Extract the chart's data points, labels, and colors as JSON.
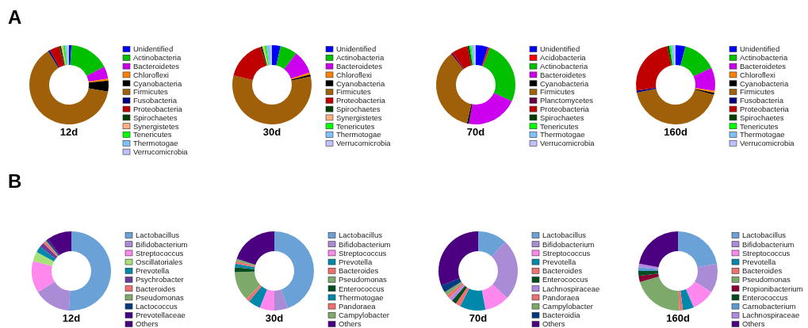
{
  "chart_data": [
    {
      "type": "donut",
      "title": "12d",
      "annotations": [
        "A"
      ],
      "legend": "right",
      "categories": [
        "Unidentified",
        "Actinobacteria",
        "Bacteroidetes",
        "Chloroflexi",
        "Cyanobacteria",
        "Firmicutes",
        "Fusobacteria",
        "Proteobacteria",
        "Spirochaetes",
        "Synergistetes",
        "Tenericutes",
        "Thermotogae",
        "Verrucomicrobia"
      ],
      "values": [
        1,
        16.5,
        5,
        0.8,
        4.5,
        63.4,
        0.8,
        4,
        0.8,
        0.8,
        0.8,
        0.8,
        0.8
      ],
      "colors": [
        "#0000ff",
        "#00c000",
        "#cc00ee",
        "#ff8000",
        "#000000",
        "#a0600a",
        "#000080",
        "#c00000",
        "#004000",
        "#ffb080",
        "#00ff00",
        "#80c0ff",
        "#c0c0ff"
      ]
    },
    {
      "type": "donut",
      "title": "30d",
      "legend": "right",
      "categories": [
        "Unidentified",
        "Actinobacteria",
        "Bacteroidetes",
        "Chloroflexi",
        "Cyanobacteria",
        "Firmicutes",
        "Proteobacteria",
        "Spirochaetes",
        "Synergistetes",
        "Tenericutes",
        "Thermotogae",
        "Verrucomicrobia"
      ],
      "values": [
        3.5,
        7,
        9.5,
        0.8,
        0.8,
        57.2,
        16.5,
        0.8,
        0.8,
        0.8,
        1.5,
        0.8
      ],
      "colors": [
        "#0000ff",
        "#00c000",
        "#cc00ee",
        "#ff8000",
        "#000000",
        "#a0600a",
        "#c00000",
        "#004000",
        "#ffb080",
        "#00ff00",
        "#80c0ff",
        "#c0c0ff"
      ]
    },
    {
      "type": "donut",
      "title": "70d",
      "legend": "right",
      "categories": [
        "Unidentified",
        "Acidobacteria",
        "Actinobacteria",
        "Bacteroidetes",
        "Cyanobacteria",
        "Firmicutes",
        "Planctomycetes",
        "Proteobacteria",
        "Spirochaetes",
        "Tenericutes",
        "Thermotogae",
        "Verrucomicrobia"
      ],
      "values": [
        5,
        0.8,
        26,
        21,
        0.8,
        35.7,
        0.8,
        6.5,
        0.8,
        0.8,
        1,
        0.8
      ],
      "colors": [
        "#0000ff",
        "#ff0000",
        "#00c000",
        "#cc00ee",
        "#000000",
        "#a0600a",
        "#660044",
        "#c00000",
        "#004000",
        "#00ff00",
        "#80c0ff",
        "#c0c0ff"
      ]
    },
    {
      "type": "donut",
      "title": "160d",
      "legend": "right",
      "categories": [
        "Unidentified",
        "Actinobacteria",
        "Bacteroidetes",
        "Chloroflexi",
        "Cyanobacteria",
        "Firmicutes",
        "Fusobacteria",
        "Proteobacteria",
        "Spirochaetes",
        "Tenericutes",
        "Thermotogae",
        "Verrucomicrobia"
      ],
      "values": [
        4,
        14,
        9.5,
        0.8,
        0.8,
        42.7,
        0.8,
        24,
        0.8,
        0.8,
        1,
        0.8
      ],
      "colors": [
        "#0000ff",
        "#00c000",
        "#cc00ee",
        "#ff8000",
        "#000000",
        "#a0600a",
        "#000080",
        "#c00000",
        "#004000",
        "#00ff00",
        "#80c0ff",
        "#c0c0ff"
      ]
    },
    {
      "type": "donut",
      "title": "12d",
      "annotations": [
        "B"
      ],
      "legend": "right",
      "categories": [
        "Lactobacillus",
        "Bifidobacterium",
        "Streptococcus",
        "Oscillatoriales",
        "Prevotella",
        "Psychrobacter",
        "Bacteroides",
        "Pseudomonas",
        "Lactococcus",
        "Prevotellaceae",
        "Others"
      ],
      "values": [
        51,
        15,
        13,
        4,
        2.5,
        2,
        1,
        0.5,
        0.5,
        0.5,
        10
      ],
      "colors": [
        "#6aa2d8",
        "#a98bd6",
        "#ff88ee",
        "#a8e07a",
        "#0088aa",
        "#6a3d9a",
        "#f07070",
        "#7daa6a",
        "#003a80",
        "#440088",
        "#4b0082"
      ]
    },
    {
      "type": "donut",
      "title": "30d",
      "legend": "right",
      "categories": [
        "Lactobacillus",
        "Bifidobacterium",
        "Streptococcus",
        "Prevotella",
        "Bacteroides",
        "Pseudomonas",
        "Enterococcus",
        "Thermotogae",
        "Pandoraea",
        "Campylobacter",
        "Others"
      ],
      "values": [
        44.5,
        5.5,
        6,
        5,
        1.5,
        12,
        2,
        1.5,
        1,
        1,
        20
      ],
      "colors": [
        "#6aa2d8",
        "#a98bd6",
        "#ff88ee",
        "#0088aa",
        "#f07070",
        "#7daa6a",
        "#004d20",
        "#0088aa",
        "#f07070",
        "#7daa6a",
        "#4b0082"
      ]
    },
    {
      "type": "donut",
      "title": "70d",
      "legend": "right",
      "categories": [
        "Lactobacillus",
        "Bifidobacterium",
        "Streptococcus",
        "Prevotella",
        "Bacteroides",
        "Enterococcus",
        "Lachnospiraceae",
        "Pandoraea",
        "Campylobacter",
        "Bacteroidia",
        "Others"
      ],
      "values": [
        12,
        25,
        10,
        10.5,
        2,
        2,
        1.5,
        1.5,
        1.5,
        3,
        31
      ],
      "colors": [
        "#6aa2d8",
        "#a98bd6",
        "#ff88ee",
        "#0088aa",
        "#f07070",
        "#004d20",
        "#b088e0",
        "#f07070",
        "#7daa6a",
        "#003a80",
        "#4b0082"
      ]
    },
    {
      "type": "donut",
      "title": "160d",
      "legend": "right",
      "categories": [
        "Lactobacillus",
        "Bifidobacterium",
        "Streptococcus",
        "Prevotella",
        "Bacteroides",
        "Pseudomonas",
        "Propionibacterium",
        "Enterococcus",
        "Carnobacterium",
        "Lachnospiraceae",
        "Others"
      ],
      "values": [
        22,
        12,
        9.5,
        4.5,
        1.5,
        21,
        2.5,
        2,
        1.5,
        1.5,
        22
      ],
      "colors": [
        "#6aa2d8",
        "#a98bd6",
        "#ff88ee",
        "#0088aa",
        "#f07070",
        "#7daa6a",
        "#880033",
        "#004d20",
        "#5b9bd5",
        "#b088e0",
        "#4b0082"
      ]
    }
  ]
}
